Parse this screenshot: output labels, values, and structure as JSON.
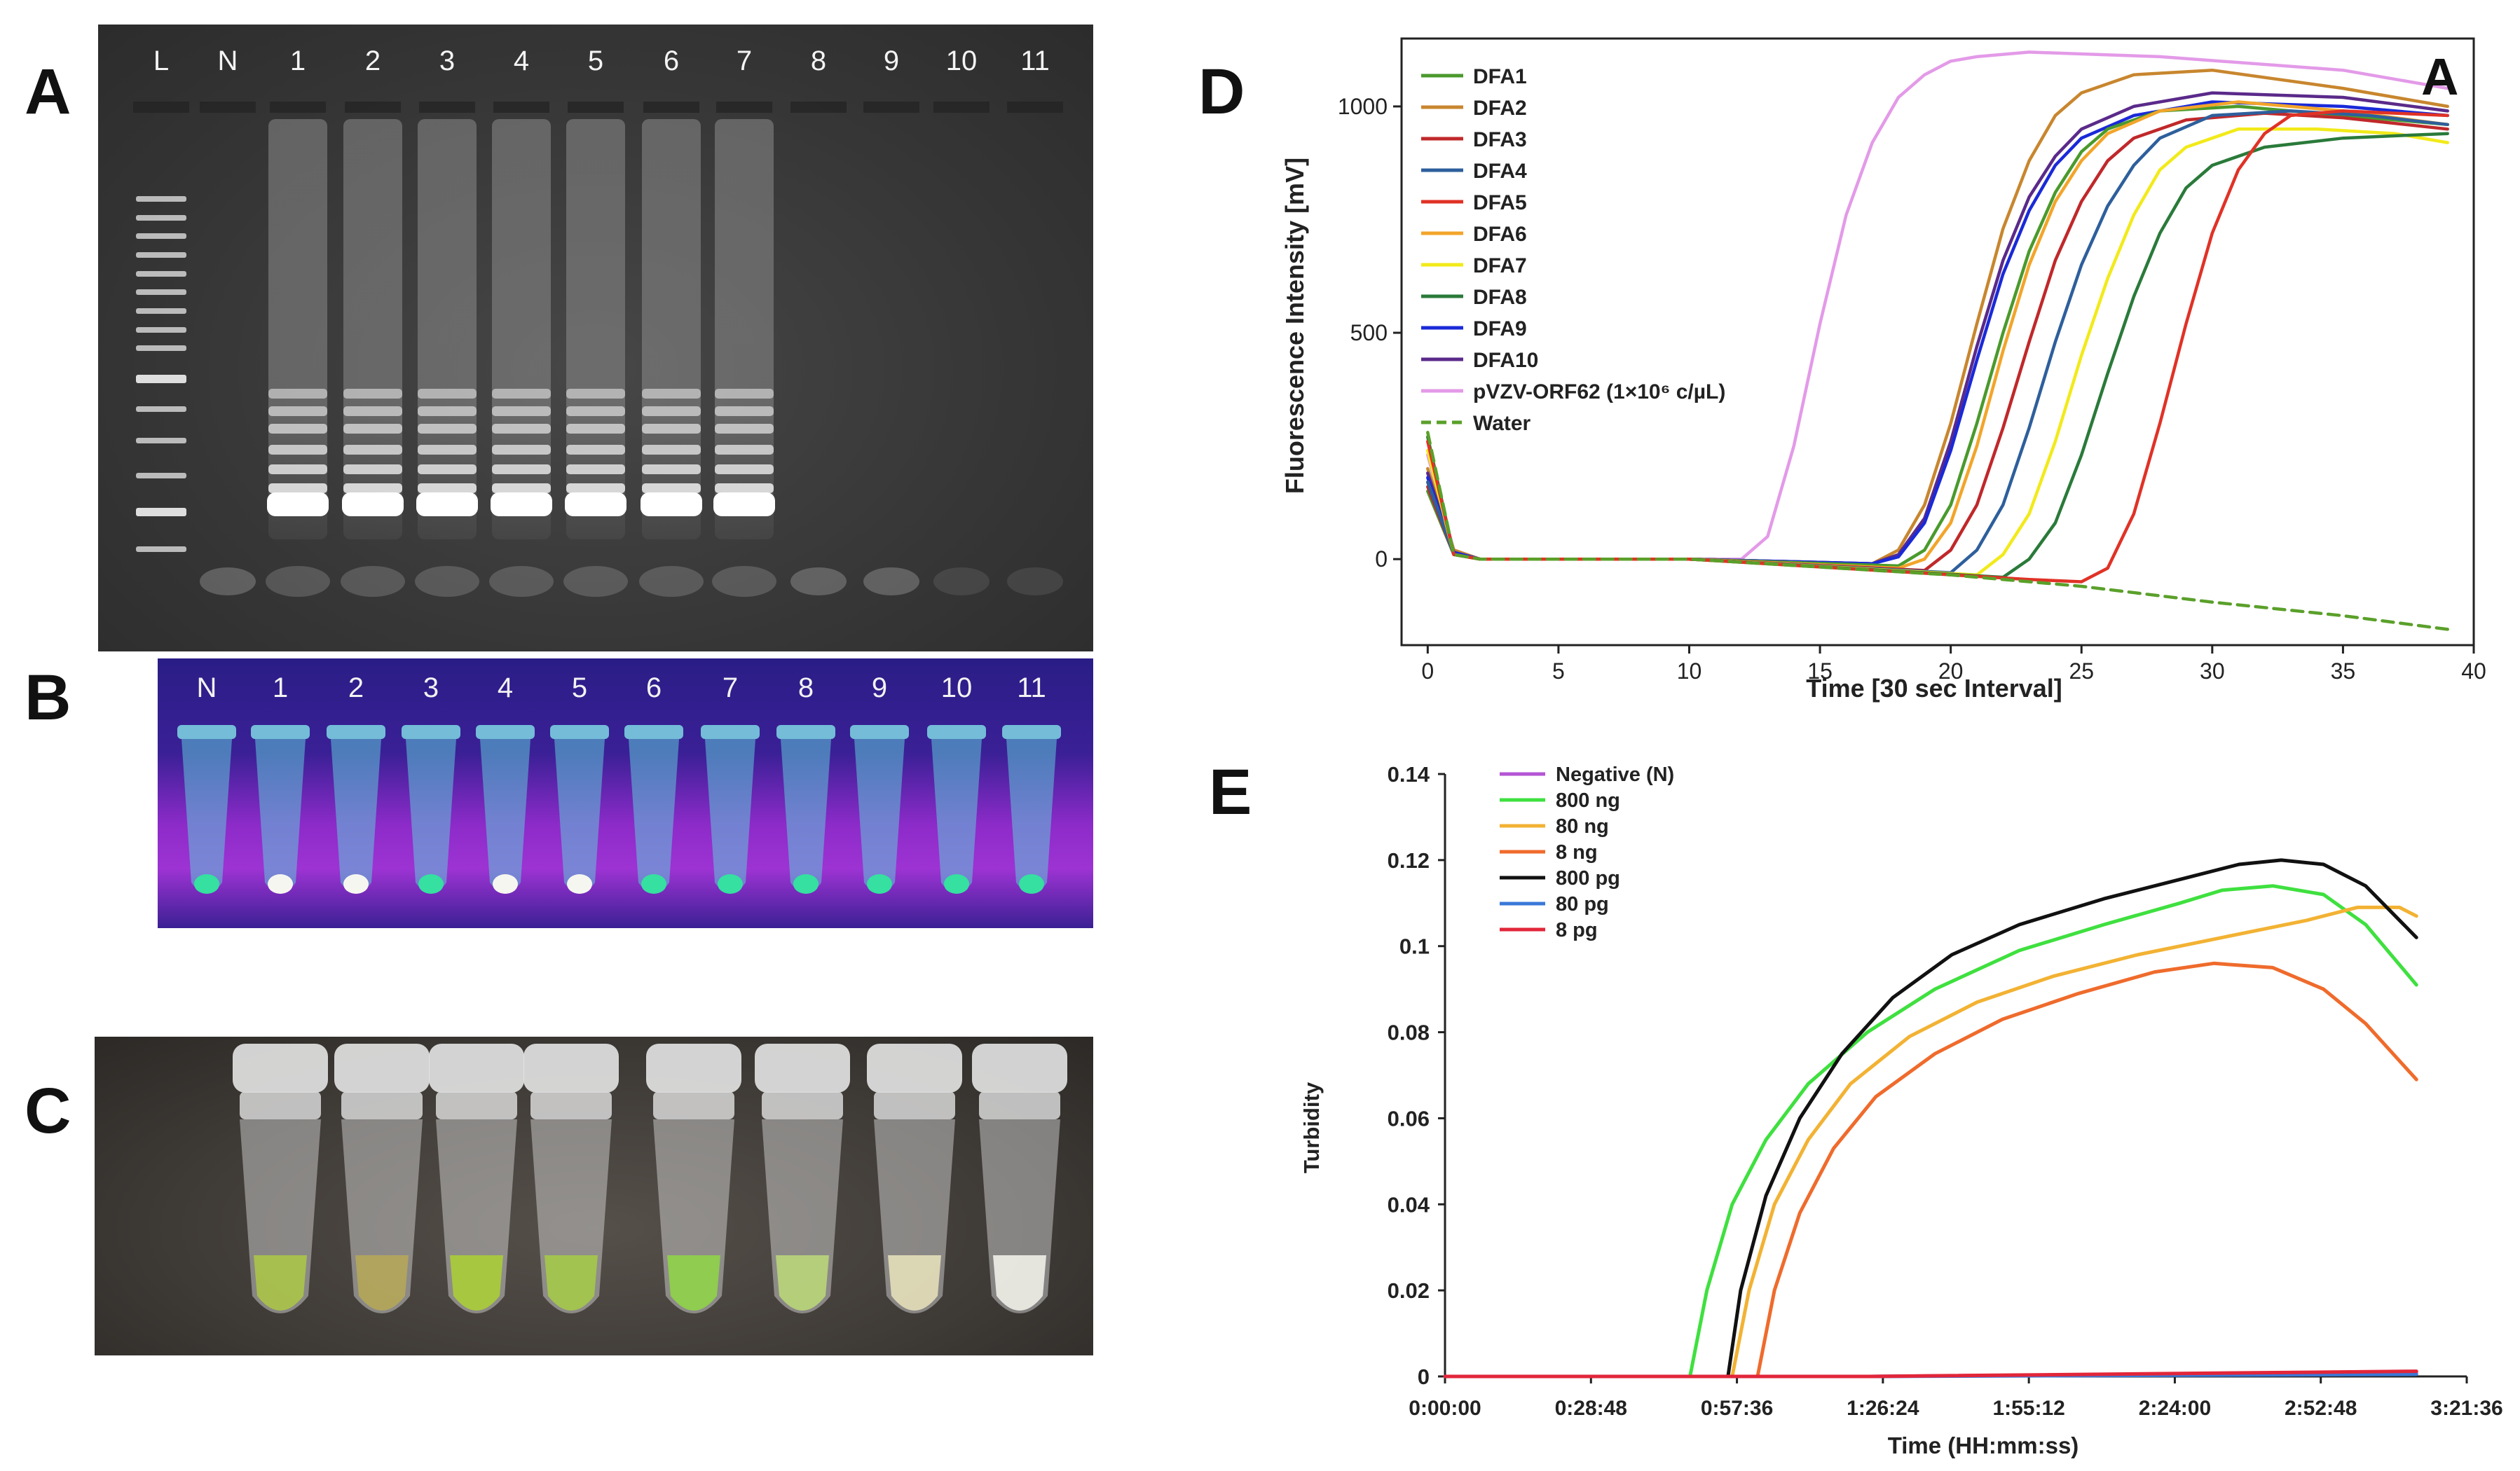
{
  "panel_labels": {
    "a": "A",
    "b": "B",
    "c": "C",
    "d": "D",
    "e": "E"
  },
  "gel": {
    "lanes": [
      "L",
      "N",
      "1",
      "2",
      "3",
      "4",
      "5",
      "6",
      "7",
      "8",
      "9",
      "10",
      "11"
    ]
  },
  "uv": {
    "tubes": [
      "N",
      "1",
      "2",
      "3",
      "4",
      "5",
      "6",
      "7",
      "8",
      "9",
      "10",
      "11"
    ]
  },
  "photo": {
    "tube_colors": [
      "#a9c34a",
      "#b3a65a",
      "#a9cc3a",
      "#a4c84a",
      "#8fd14a",
      "#b8d47a",
      "#e2dcb8",
      "#eeeee6"
    ]
  },
  "colors": {
    "DFA1": "#4a9a2c",
    "DFA2": "#c8862e",
    "DFA3": "#c0282a",
    "DFA4": "#2e5f9c",
    "DFA5": "#e03226",
    "DFA6": "#f2a52a",
    "DFA7": "#f2ea1a",
    "DFA8": "#2a7a3a",
    "DFA9": "#1a2ad8",
    "DFA10": "#5a2a8a",
    "pVZV": "#e39ae8",
    "Water": "#5aa02a"
  },
  "chart_data": [
    {
      "type": "line",
      "panel": "D",
      "inset_label": "A",
      "xlabel": "Time [30 sec Interval]",
      "ylabel": "Fluorescence Intensity [mV]",
      "xlim": [
        -1,
        40
      ],
      "ylim": [
        -190,
        1150
      ],
      "xticks": [
        0,
        5,
        10,
        15,
        20,
        25,
        30,
        35,
        40
      ],
      "yticks": [
        0,
        500,
        1000
      ],
      "legend_position": "top-left",
      "legend": [
        "DFA1",
        "DFA2",
        "DFA3",
        "DFA4",
        "DFA5",
        "DFA6",
        "DFA7",
        "DFA8",
        "DFA9",
        "DFA10",
        "pVZV-ORF62 (1×10⁶ c/µL)",
        "Water"
      ],
      "series": [
        {
          "name": "pVZV-ORF62 (1×10⁶ c/µL)",
          "key": "pVZV",
          "x": [
            0,
            1,
            2,
            5,
            10,
            12,
            13,
            14,
            15,
            16,
            17,
            18,
            19,
            20,
            21,
            23,
            28,
            35,
            39
          ],
          "y": [
            230,
            20,
            0,
            0,
            0,
            0,
            50,
            250,
            520,
            760,
            920,
            1020,
            1070,
            1100,
            1110,
            1120,
            1110,
            1080,
            1040
          ]
        },
        {
          "name": "DFA2",
          "key": "DFA2",
          "x": [
            0,
            1,
            2,
            5,
            10,
            17,
            18,
            19,
            20,
            21,
            22,
            23,
            24,
            25,
            27,
            30,
            35,
            39
          ],
          "y": [
            200,
            20,
            0,
            0,
            0,
            -10,
            20,
            120,
            300,
            520,
            730,
            880,
            980,
            1030,
            1070,
            1080,
            1040,
            1000
          ]
        },
        {
          "name": "DFA10",
          "key": "DFA10",
          "x": [
            0,
            1,
            2,
            5,
            10,
            17,
            18,
            19,
            20,
            21,
            22,
            23,
            24,
            25,
            27,
            30,
            35,
            39
          ],
          "y": [
            190,
            15,
            0,
            0,
            0,
            -10,
            10,
            90,
            260,
            470,
            660,
            800,
            890,
            950,
            1000,
            1030,
            1020,
            990
          ]
        },
        {
          "name": "DFA9",
          "key": "DFA9",
          "x": [
            0,
            1,
            2,
            5,
            10,
            17,
            18,
            19,
            20,
            21,
            22,
            23,
            24,
            25,
            27,
            30,
            35,
            39
          ],
          "y": [
            180,
            15,
            0,
            0,
            0,
            -10,
            5,
            80,
            240,
            440,
            630,
            770,
            870,
            930,
            980,
            1010,
            1000,
            980
          ]
        },
        {
          "name": "DFA1",
          "key": "DFA1",
          "x": [
            0,
            1,
            2,
            5,
            10,
            18,
            19,
            20,
            21,
            22,
            23,
            24,
            25,
            26,
            28,
            31,
            35,
            39
          ],
          "y": [
            150,
            10,
            0,
            0,
            0,
            -15,
            20,
            120,
            300,
            500,
            680,
            810,
            900,
            950,
            990,
            1000,
            980,
            960
          ]
        },
        {
          "name": "DFA6",
          "key": "DFA6",
          "x": [
            0,
            1,
            2,
            5,
            10,
            18,
            19,
            20,
            21,
            22,
            23,
            24,
            25,
            26,
            28,
            31,
            35,
            39
          ],
          "y": [
            170,
            10,
            0,
            0,
            0,
            -20,
            0,
            80,
            250,
            460,
            650,
            790,
            880,
            940,
            990,
            1010,
            990,
            960
          ]
        },
        {
          "name": "DFA3",
          "key": "DFA3",
          "x": [
            0,
            1,
            2,
            5,
            10,
            19,
            20,
            21,
            22,
            23,
            24,
            25,
            26,
            27,
            29,
            32,
            35,
            39
          ],
          "y": [
            160,
            10,
            0,
            0,
            0,
            -25,
            20,
            120,
            290,
            480,
            660,
            790,
            880,
            930,
            970,
            985,
            975,
            950
          ]
        },
        {
          "name": "DFA4",
          "key": "DFA4",
          "x": [
            0,
            1,
            2,
            5,
            10,
            20,
            21,
            22,
            23,
            24,
            25,
            26,
            27,
            28,
            30,
            33,
            36,
            39
          ],
          "y": [
            170,
            10,
            0,
            0,
            0,
            -30,
            20,
            120,
            290,
            480,
            650,
            780,
            870,
            930,
            980,
            990,
            980,
            960
          ]
        },
        {
          "name": "DFA7",
          "key": "DFA7",
          "x": [
            0,
            1,
            2,
            5,
            10,
            21,
            22,
            23,
            24,
            25,
            26,
            27,
            28,
            29,
            31,
            34,
            37,
            39
          ],
          "y": [
            240,
            10,
            0,
            0,
            0,
            -35,
            10,
            100,
            260,
            450,
            620,
            760,
            860,
            910,
            950,
            950,
            940,
            920
          ]
        },
        {
          "name": "DFA8",
          "key": "DFA8",
          "x": [
            0,
            1,
            2,
            5,
            10,
            22,
            23,
            24,
            25,
            26,
            27,
            28,
            29,
            30,
            32,
            35,
            37,
            39
          ],
          "y": [
            270,
            10,
            0,
            0,
            0,
            -40,
            0,
            80,
            230,
            410,
            580,
            720,
            820,
            870,
            910,
            930,
            935,
            940
          ]
        },
        {
          "name": "DFA5",
          "key": "DFA5",
          "x": [
            0,
            1,
            2,
            5,
            10,
            23,
            25,
            26,
            27,
            28,
            29,
            30,
            31,
            32,
            33,
            35,
            37,
            39
          ],
          "y": [
            260,
            10,
            0,
            0,
            0,
            -45,
            -50,
            -20,
            100,
            300,
            520,
            720,
            860,
            940,
            980,
            990,
            985,
            980
          ]
        },
        {
          "name": "Water",
          "key": "Water",
          "dashed": true,
          "x": [
            0,
            1,
            2,
            5,
            10,
            20,
            25,
            30,
            35,
            39
          ],
          "y": [
            280,
            10,
            0,
            0,
            0,
            -35,
            -60,
            -95,
            -125,
            -155
          ]
        }
      ]
    },
    {
      "type": "line",
      "panel": "E",
      "xlabel": "Time (HH:mm:ss)",
      "ylabel": "Turbidity",
      "xlim": [
        0,
        12096
      ],
      "ylim": [
        0,
        0.14
      ],
      "xticks": [
        0,
        1728,
        3456,
        5184,
        6912,
        8640,
        10368,
        12096
      ],
      "xtick_labels": [
        "0:00:00",
        "0:28:48",
        "0:57:36",
        "1:26:24",
        "1:55:12",
        "2:24:00",
        "2:52:48",
        "3:21:36"
      ],
      "yticks": [
        0,
        0.02,
        0.04,
        0.06,
        0.08,
        0.1,
        0.12,
        0.14
      ],
      "ytick_labels": [
        "0",
        "0.02",
        "0.04",
        "0.06",
        "0.08",
        "0.1",
        "0.12",
        "0.14"
      ],
      "legend_position": "top-left",
      "series": [
        {
          "name": "Negative (N)",
          "color": "#b455d4",
          "x": [
            0,
            5000,
            11500
          ],
          "y": [
            0,
            0,
            0.001
          ]
        },
        {
          "name": "800 ng",
          "color": "#3fe03f",
          "x": [
            2900,
            3100,
            3400,
            3800,
            4300,
            5000,
            5800,
            6800,
            7800,
            8700,
            9200,
            9800,
            10400,
            10900,
            11500
          ],
          "y": [
            0,
            0.02,
            0.04,
            0.055,
            0.068,
            0.08,
            0.09,
            0.099,
            0.105,
            0.11,
            0.113,
            0.114,
            0.112,
            0.105,
            0.091
          ]
        },
        {
          "name": "80 ng",
          "color": "#f2b233",
          "x": [
            3400,
            3600,
            3900,
            4300,
            4800,
            5500,
            6300,
            7200,
            8200,
            9200,
            10200,
            10800,
            11300,
            11500
          ],
          "y": [
            0,
            0.02,
            0.04,
            0.055,
            0.068,
            0.079,
            0.087,
            0.093,
            0.098,
            0.102,
            0.106,
            0.109,
            0.109,
            0.107
          ]
        },
        {
          "name": "8 ng",
          "color": "#ef6b2c",
          "x": [
            3700,
            3900,
            4200,
            4600,
            5100,
            5800,
            6600,
            7500,
            8400,
            9100,
            9800,
            10400,
            10900,
            11500
          ],
          "y": [
            0,
            0.02,
            0.038,
            0.053,
            0.065,
            0.075,
            0.083,
            0.089,
            0.094,
            0.096,
            0.095,
            0.09,
            0.082,
            0.069
          ]
        },
        {
          "name": "800 pg",
          "color": "#111111",
          "x": [
            3350,
            3500,
            3800,
            4200,
            4700,
            5300,
            6000,
            6800,
            7800,
            8800,
            9400,
            9900,
            10400,
            10900,
            11500
          ],
          "y": [
            0,
            0.02,
            0.042,
            0.06,
            0.075,
            0.088,
            0.098,
            0.105,
            0.111,
            0.116,
            0.119,
            0.12,
            0.119,
            0.114,
            0.102
          ]
        },
        {
          "name": "80 pg",
          "color": "#3a78d8",
          "x": [
            0,
            5000,
            11500
          ],
          "y": [
            0,
            0,
            0.0005
          ]
        },
        {
          "name": "8 pg",
          "color": "#e2263a",
          "x": [
            0,
            5000,
            11500
          ],
          "y": [
            0,
            0,
            0.0012
          ]
        }
      ]
    }
  ]
}
